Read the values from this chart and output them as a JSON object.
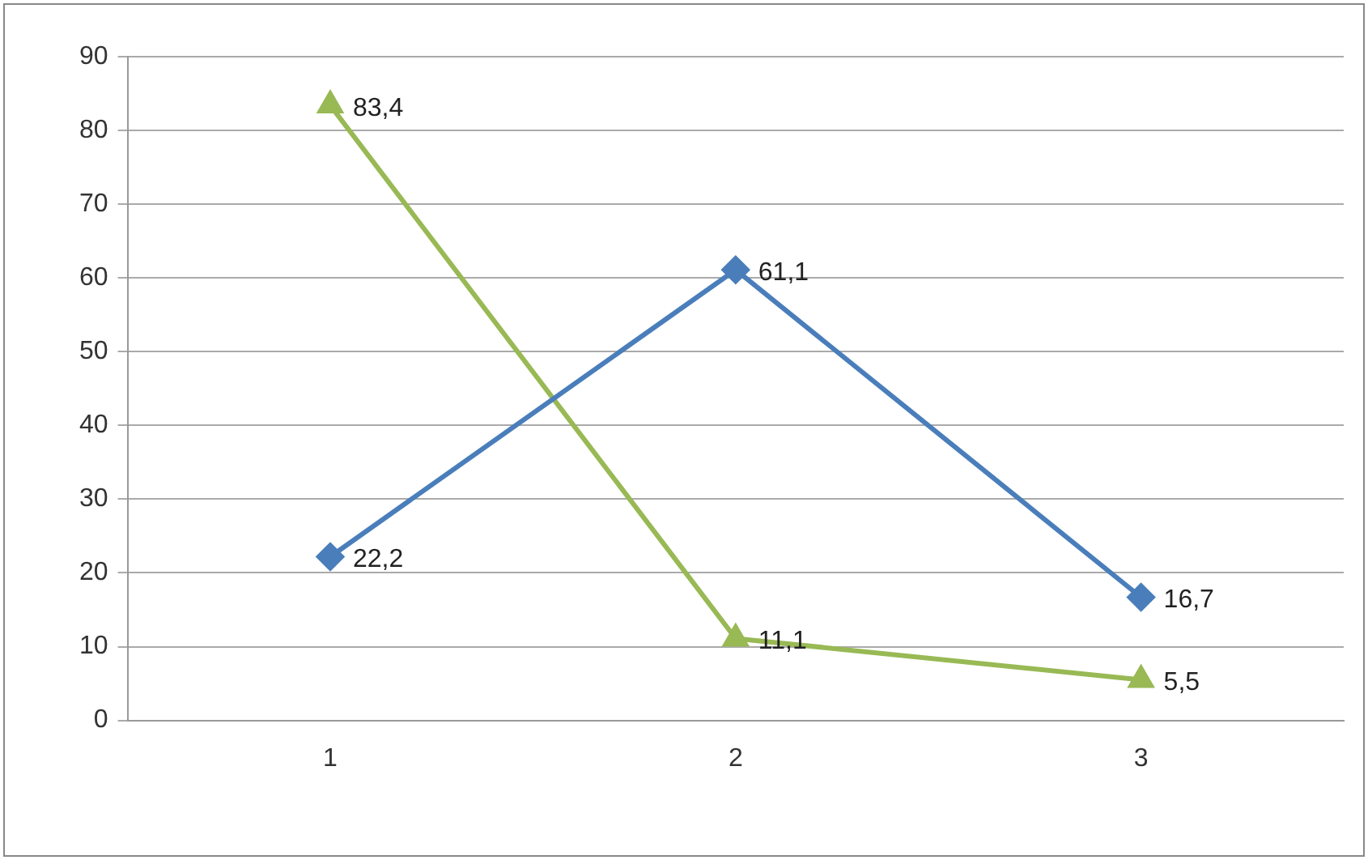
{
  "chart_data": {
    "type": "line",
    "categories": [
      "1",
      "2",
      "3"
    ],
    "series": [
      {
        "color": "#4a7ebb",
        "marker": "diamond",
        "values": [
          22.2,
          61.1,
          16.7
        ],
        "value_labels": [
          "22,2",
          "61,1",
          "16,7"
        ]
      },
      {
        "color": "#98b954",
        "marker": "triangle",
        "values": [
          83.4,
          11.1,
          5.5
        ],
        "value_labels": [
          "83,4",
          "11,1",
          "5,5"
        ]
      }
    ],
    "ylim": [
      0,
      90
    ],
    "yticks": [
      0,
      10,
      20,
      30,
      40,
      50,
      60,
      70,
      80,
      90
    ],
    "grid": "y",
    "legend": false
  }
}
